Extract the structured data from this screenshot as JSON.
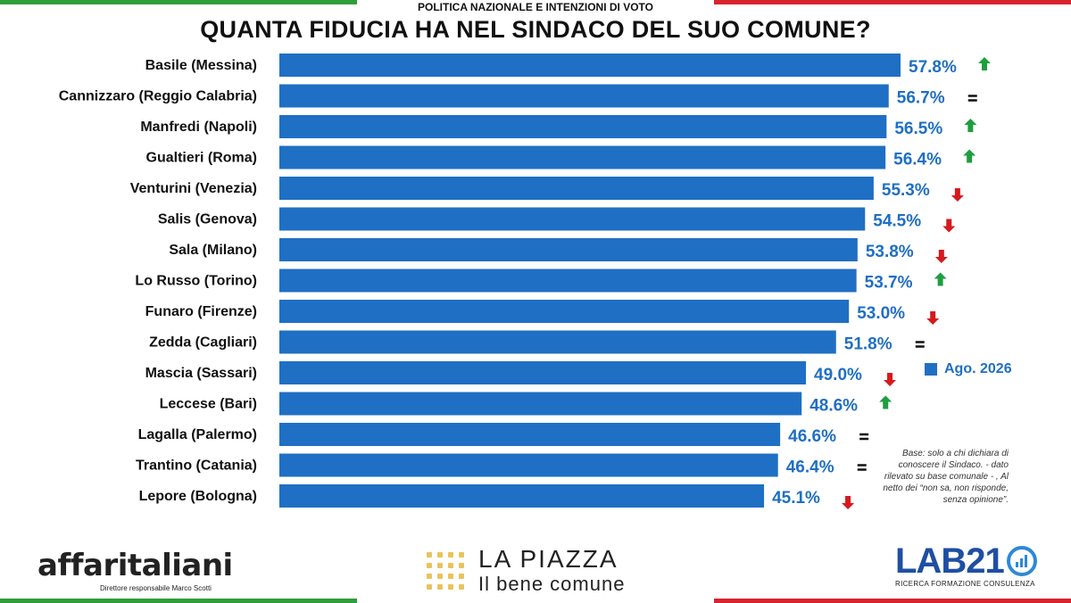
{
  "header": {
    "kicker": "POLITICA NAZIONALE E INTENZIONI DI VOTO",
    "title": "QUANTA FIDUCIA HA NEL SINDACO DEL SUO COMUNE?"
  },
  "chart_data": {
    "type": "bar",
    "orientation": "horizontal",
    "categories": [
      "Basile (Messina)",
      "Cannizzaro (Reggio Calabria)",
      "Manfredi (Napoli)",
      "Gualtieri (Roma)",
      "Venturini (Venezia)",
      "Salis (Genova)",
      "Sala (Milano)",
      "Lo Russo (Torino)",
      "Funaro (Firenze)",
      "Zedda (Cagliari)",
      "Mascia (Sassari)",
      "Leccese (Bari)",
      "Lagalla (Palermo)",
      "Trantino (Catania)",
      "Lepore (Bologna)"
    ],
    "series": [
      {
        "name": "Ago. 2026",
        "values": [
          57.8,
          56.7,
          56.5,
          56.4,
          55.3,
          54.5,
          53.8,
          53.7,
          53.0,
          51.8,
          49.0,
          48.6,
          46.6,
          46.4,
          45.1
        ]
      }
    ],
    "value_labels": [
      "57.8%",
      "56.7%",
      "56.5%",
      "56.4%",
      "55.3%",
      "54.5%",
      "53.8%",
      "53.7%",
      "53.0%",
      "51.8%",
      "49.0%",
      "48.6%",
      "46.6%",
      "46.4%",
      "45.1%"
    ],
    "trends": [
      "up",
      "same",
      "up",
      "up",
      "down",
      "down",
      "down",
      "up",
      "down",
      "same",
      "down",
      "up",
      "same",
      "same",
      "down"
    ],
    "xlim": [
      0,
      57.8
    ],
    "legend_position": "right",
    "grid": false,
    "colors": {
      "bar": "#1f6fc4",
      "label": "#1f6fc4",
      "up": "#1f9e3f",
      "down": "#d7191c",
      "same": "#111111"
    }
  },
  "legend": {
    "label": "Ago. 2026"
  },
  "note": "Base: solo a chi dichiara di conoscere il Sindaco. - dato rilevato su base comunale - , Al netto dei “non sa, non risponde, senza opinione”.",
  "footer": {
    "affari_logo": "affaritaliani",
    "affari_sub": "Direttore responsabile Marco Scotti",
    "piazza_line1": "LA PIAZZA",
    "piazza_line2": "Il bene comune",
    "lab_logo": "LAB21",
    "lab_sub": "RICERCA FORMAZIONE CONSULENZA"
  }
}
